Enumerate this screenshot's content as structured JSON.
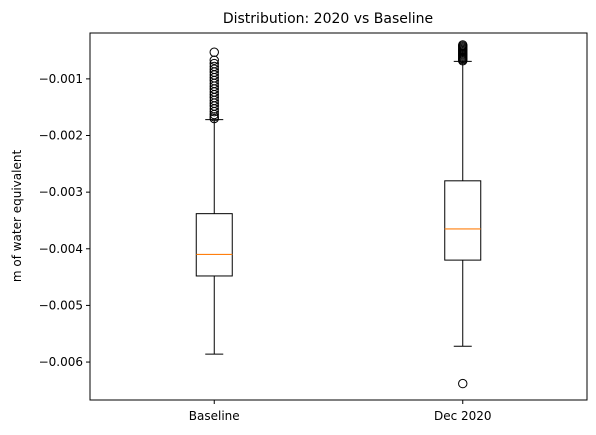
{
  "chart_data": {
    "type": "boxplot",
    "title": "Distribution: 2020 vs Baseline",
    "ylabel": "m of water equivalent",
    "xlabel": "",
    "categories": [
      "Baseline",
      "Dec 2020"
    ],
    "ylim": [
      -0.00667,
      -0.00019
    ],
    "yticks": [
      -0.001,
      -0.002,
      -0.003,
      -0.004,
      -0.005,
      -0.006
    ],
    "ytick_labels": [
      "−0.001",
      "−0.002",
      "−0.003",
      "−0.004",
      "−0.005",
      "−0.006"
    ],
    "boxes": [
      {
        "name": "Baseline",
        "whisker_low": -0.00586,
        "q1": -0.00448,
        "median": -0.0041,
        "q3": -0.00338,
        "whisker_high": -0.00172,
        "outliers": [
          -0.00053,
          -0.00067,
          -0.00073,
          -0.00078,
          -0.00083,
          -0.00088,
          -0.00093,
          -0.00098,
          -0.00103,
          -0.00108,
          -0.00113,
          -0.00118,
          -0.00123,
          -0.00128,
          -0.00133,
          -0.00138,
          -0.00143,
          -0.00148,
          -0.00153,
          -0.00158,
          -0.00163,
          -0.00167,
          -0.0017
        ]
      },
      {
        "name": "Dec 2020",
        "whisker_low": -0.00572,
        "q1": -0.0042,
        "median": -0.00365,
        "q3": -0.0028,
        "whisker_high": -0.00069,
        "outliers": [
          -0.0004,
          -0.00042,
          -0.00044,
          -0.00046,
          -0.00048,
          -0.0005,
          -0.00052,
          -0.00054,
          -0.00056,
          -0.00058,
          -0.0006,
          -0.00062,
          -0.00064,
          -0.00066,
          -0.00068,
          -0.00638
        ]
      }
    ],
    "colors": {
      "box": "#000000",
      "median": "#ff7f0e",
      "outlier": "#000000"
    },
    "grid": false,
    "legend": "none"
  }
}
